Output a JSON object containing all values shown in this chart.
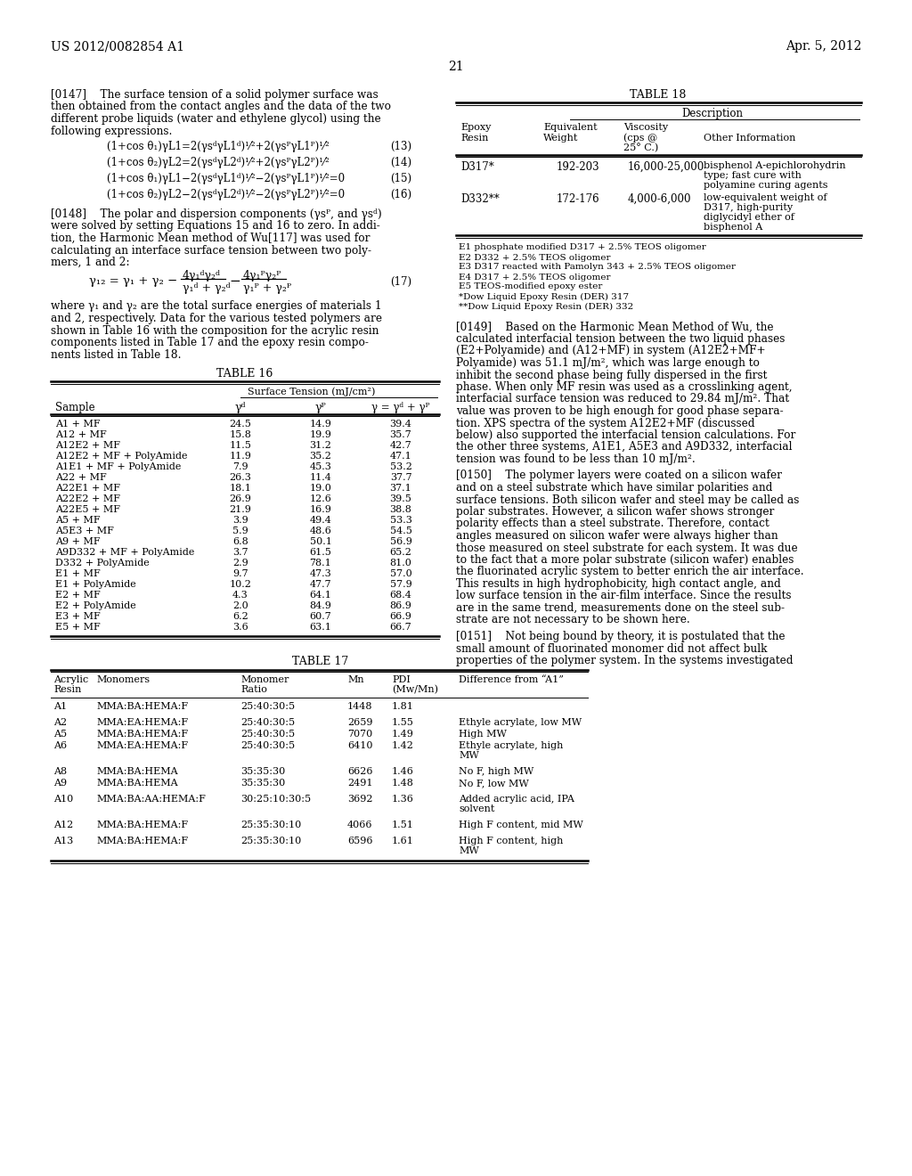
{
  "header_left": "US 2012/0082854 A1",
  "header_right": "Apr. 5, 2012",
  "page_number": "21",
  "bg_color": "#ffffff",
  "table16_data": [
    [
      "A1 + MF",
      "24.5",
      "14.9",
      "39.4"
    ],
    [
      "A12 + MF",
      "15.8",
      "19.9",
      "35.7"
    ],
    [
      "A12E2 + MF",
      "11.5",
      "31.2",
      "42.7"
    ],
    [
      "A12E2 + MF + PolyAmide",
      "11.9",
      "35.2",
      "47.1"
    ],
    [
      "A1E1 + MF + PolyAmide",
      "7.9",
      "45.3",
      "53.2"
    ],
    [
      "A22 + MF",
      "26.3",
      "11.4",
      "37.7"
    ],
    [
      "A22E1 + MF",
      "18.1",
      "19.0",
      "37.1"
    ],
    [
      "A22E2 + MF",
      "26.9",
      "12.6",
      "39.5"
    ],
    [
      "A22E5 + MF",
      "21.9",
      "16.9",
      "38.8"
    ],
    [
      "A5 + MF",
      "3.9",
      "49.4",
      "53.3"
    ],
    [
      "A5E3 + MF",
      "5.9",
      "48.6",
      "54.5"
    ],
    [
      "A9 + MF",
      "6.8",
      "50.1",
      "56.9"
    ],
    [
      "A9D332 + MF + PolyAmide",
      "3.7",
      "61.5",
      "65.2"
    ],
    [
      "D332 + PolyAmide",
      "2.9",
      "78.1",
      "81.0"
    ],
    [
      "E1 + MF",
      "9.7",
      "47.3",
      "57.0"
    ],
    [
      "E1 + PolyAmide",
      "10.2",
      "47.7",
      "57.9"
    ],
    [
      "E2 + MF",
      "4.3",
      "64.1",
      "68.4"
    ],
    [
      "E2 + PolyAmide",
      "2.0",
      "84.9",
      "86.9"
    ],
    [
      "E3 + MF",
      "6.2",
      "60.7",
      "66.9"
    ],
    [
      "E5 + MF",
      "3.6",
      "63.1",
      "66.7"
    ]
  ],
  "table17_data": [
    [
      "A1",
      "MMA:BA:HEMA:F",
      "25:40:30:5",
      "1448",
      "1.81",
      ""
    ],
    [
      "A2",
      "MMA:EA:HEMA:F",
      "25:40:30:5",
      "2659",
      "1.55",
      "Ethyle acrylate, low MW"
    ],
    [
      "A5",
      "MMA:BA:HEMA:F",
      "25:40:30:5",
      "7070",
      "1.49",
      "High MW"
    ],
    [
      "A6",
      "MMA:EA:HEMA:F",
      "25:40:30:5",
      "6410",
      "1.42",
      "Ethyle acrylate, high\nMW"
    ],
    [
      "A8",
      "MMA:BA:HEMA",
      "35:35:30",
      "6626",
      "1.46",
      "No F, high MW"
    ],
    [
      "A9",
      "MMA:BA:HEMA",
      "35:35:30",
      "2491",
      "1.48",
      "No F, low MW"
    ],
    [
      "A10",
      "MMA:BA:AA:HEMA:F",
      "30:25:10:30:5",
      "3692",
      "1.36",
      "Added acrylic acid, IPA\nsolvent"
    ],
    [
      "A12",
      "MMA:BA:HEMA:F",
      "25:35:30:10",
      "4066",
      "1.51",
      "High F content, mid MW"
    ],
    [
      "A13",
      "MMA:BA:HEMA:F",
      "25:35:30:10",
      "6596",
      "1.61",
      "High F content, high\nMW"
    ]
  ],
  "table18_footnotes": [
    "E1 phosphate modified D317 + 2.5% TEOS oligomer",
    "E2 D332 + 2.5% TEOS oligomer",
    "E3 D317 reacted with Pamolyn 343 + 2.5% TEOS oligomer",
    "E4 D317 + 2.5% TEOS oligomer",
    "E5 TEOS-modified epoxy ester",
    "*Dow Liquid Epoxy Resin (DER) 317",
    "**Dow Liquid Epoxy Resin (DER) 332"
  ]
}
